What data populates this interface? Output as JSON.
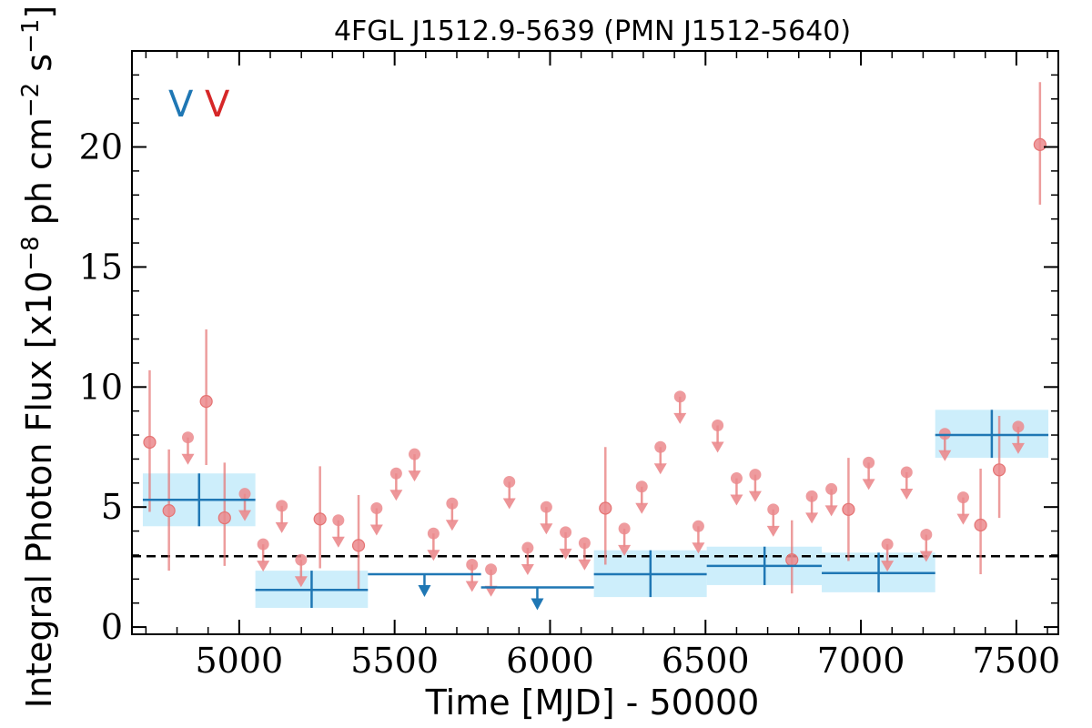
{
  "chart_data": {
    "type": "scatter",
    "title": "4FGL J1512.9-5639 (PMN J1512-5640)",
    "xlabel": "Time [MJD] - 50000",
    "ylabel": "Integral Photon Flux [x10$^{-8}$ ph cm$^{-2}$ s$^{-1}$]",
    "ylabel_text": "Integral Photon Flux [x10",
    "ylabel_exp1": "−8",
    "ylabel_mid": " ph cm",
    "ylabel_exp2": "−2",
    "ylabel_end": " s",
    "ylabel_exp3": "−1",
    "ylabel_close": "]",
    "xlim": [
      4655,
      7635
    ],
    "ylim": [
      -0.3,
      24.0
    ],
    "xticks": [
      5000,
      5500,
      6000,
      6500,
      7000,
      7500
    ],
    "yticks": [
      0,
      5,
      10,
      15,
      20
    ],
    "reference_level": 2.95,
    "legend": [
      {
        "label": "V",
        "color": "#1f77b4"
      },
      {
        "label": "V",
        "color": "#d62728"
      }
    ],
    "colors": {
      "blue": "#1f77b4",
      "blue_fill": "#cdeefb",
      "red": "#e57373",
      "red_face": "#eb8a8d"
    },
    "series": [
      {
        "style": "blue-binned",
        "detections": [
          {
            "x": 4871,
            "x_lo": 4690,
            "x_hi": 5052,
            "y": 5.3,
            "y_lo": 4.2,
            "y_hi": 6.4
          },
          {
            "x": 5233,
            "x_lo": 5052,
            "x_hi": 5414,
            "y": 1.55,
            "y_lo": 0.8,
            "y_hi": 2.35
          },
          {
            "x": 6323,
            "x_lo": 6141,
            "x_hi": 6504,
            "y": 2.2,
            "y_lo": 1.25,
            "y_hi": 3.2
          },
          {
            "x": 6690,
            "x_lo": 6504,
            "x_hi": 6874,
            "y": 2.55,
            "y_lo": 1.75,
            "y_hi": 3.35
          },
          {
            "x": 7057,
            "x_lo": 6874,
            "x_hi": 7239,
            "y": 2.25,
            "y_lo": 1.45,
            "y_hi": 3.1
          },
          {
            "x": 7421,
            "x_lo": 7239,
            "x_hi": 7603,
            "y": 8.0,
            "y_lo": 7.05,
            "y_hi": 9.05
          }
        ],
        "upper_limits": [
          {
            "x": 5596,
            "x_lo": 5414,
            "x_hi": 5778,
            "y": 2.2
          },
          {
            "x": 5959,
            "x_lo": 5778,
            "x_hi": 6141,
            "y": 1.65
          }
        ]
      },
      {
        "style": "red-monthly",
        "detections": [
          {
            "x": 4712,
            "y": 7.7,
            "y_lo": 4.8,
            "y_hi": 10.7
          },
          {
            "x": 4774,
            "y": 4.85,
            "y_lo": 2.35,
            "y_hi": 7.4
          },
          {
            "x": 4894,
            "y": 9.4,
            "y_lo": 6.75,
            "y_hi": 12.4
          },
          {
            "x": 4953,
            "y": 4.55,
            "y_lo": 2.55,
            "y_hi": 6.85
          },
          {
            "x": 5260,
            "y": 4.5,
            "y_lo": 2.45,
            "y_hi": 6.7
          },
          {
            "x": 5384,
            "y": 3.4,
            "y_lo": 1.55,
            "y_hi": 5.5
          },
          {
            "x": 6178,
            "y": 4.95,
            "y_lo": 2.6,
            "y_hi": 7.5
          },
          {
            "x": 6778,
            "y": 2.8,
            "y_lo": 1.4,
            "y_hi": 4.45
          },
          {
            "x": 6960,
            "y": 4.9,
            "y_lo": 2.75,
            "y_hi": 7.05
          },
          {
            "x": 7385,
            "y": 4.25,
            "y_lo": 2.2,
            "y_hi": 6.6
          },
          {
            "x": 7445,
            "y": 6.55,
            "y_lo": 4.55,
            "y_hi": 8.8
          },
          {
            "x": 7576,
            "y": 20.1,
            "y_lo": 17.6,
            "y_hi": 22.7
          }
        ],
        "upper_limits": [
          {
            "x": 4835,
            "y": 7.9
          },
          {
            "x": 5018,
            "y": 5.55
          },
          {
            "x": 5077,
            "y": 3.45
          },
          {
            "x": 5137,
            "y": 5.05
          },
          {
            "x": 5199,
            "y": 2.8
          },
          {
            "x": 5319,
            "y": 4.45
          },
          {
            "x": 5442,
            "y": 4.95
          },
          {
            "x": 5505,
            "y": 6.4
          },
          {
            "x": 5564,
            "y": 7.2
          },
          {
            "x": 5625,
            "y": 3.9
          },
          {
            "x": 5685,
            "y": 5.15
          },
          {
            "x": 5749,
            "y": 2.6
          },
          {
            "x": 5810,
            "y": 2.4
          },
          {
            "x": 5869,
            "y": 6.05
          },
          {
            "x": 5928,
            "y": 3.3
          },
          {
            "x": 5988,
            "y": 5.0
          },
          {
            "x": 6050,
            "y": 3.95
          },
          {
            "x": 6111,
            "y": 3.5
          },
          {
            "x": 6239,
            "y": 4.1
          },
          {
            "x": 6295,
            "y": 5.85
          },
          {
            "x": 6355,
            "y": 7.5
          },
          {
            "x": 6418,
            "y": 9.6
          },
          {
            "x": 6477,
            "y": 4.2
          },
          {
            "x": 6539,
            "y": 8.4
          },
          {
            "x": 6600,
            "y": 6.2
          },
          {
            "x": 6660,
            "y": 6.35
          },
          {
            "x": 6718,
            "y": 4.9
          },
          {
            "x": 6842,
            "y": 5.45
          },
          {
            "x": 6905,
            "y": 5.75
          },
          {
            "x": 7025,
            "y": 6.85
          },
          {
            "x": 7085,
            "y": 3.45
          },
          {
            "x": 7147,
            "y": 6.45
          },
          {
            "x": 7210,
            "y": 3.85
          },
          {
            "x": 7270,
            "y": 8.05
          },
          {
            "x": 7329,
            "y": 5.4
          },
          {
            "x": 7506,
            "y": 8.35
          }
        ]
      }
    ]
  }
}
